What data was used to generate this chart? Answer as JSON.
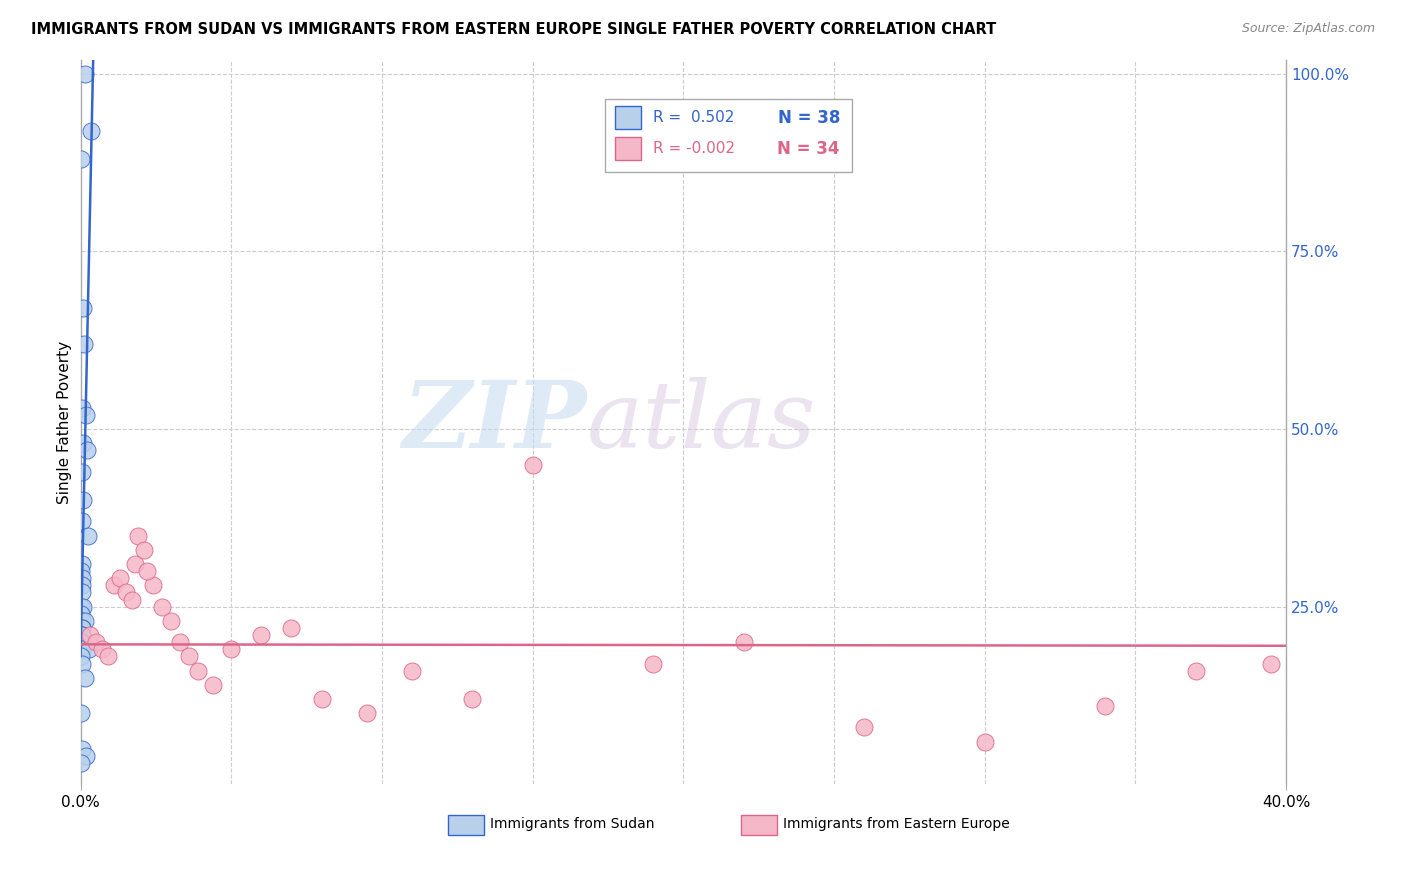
{
  "title": "IMMIGRANTS FROM SUDAN VS IMMIGRANTS FROM EASTERN EUROPE SINGLE FATHER POVERTY CORRELATION CHART",
  "source": "Source: ZipAtlas.com",
  "ylabel": "Single Father Poverty",
  "legend_blue_r": "R =  0.502",
  "legend_blue_n": "N = 38",
  "legend_pink_r": "R = -0.002",
  "legend_pink_n": "N = 34",
  "blue_color": "#b8d0ea",
  "pink_color": "#f5b8c8",
  "blue_line_color": "#3366cc",
  "pink_line_color": "#dd6688",
  "watermark_zip": "ZIP",
  "watermark_atlas": "atlas",
  "blue_x": [
    0.0015,
    0.0035,
    0.0003,
    0.0008,
    0.0012,
    0.0005,
    0.0018,
    0.0007,
    0.0022,
    0.0004,
    0.0009,
    0.0006,
    0.0025,
    0.0004,
    0.0003,
    0.0005,
    0.0004,
    0.0006,
    0.0003,
    0.0007,
    0.0002,
    0.0004,
    0.0014,
    0.0005,
    0.0006,
    0.0004,
    0.0005,
    0.0002,
    0.0002,
    0.0004,
    0.0028,
    0.0003,
    0.0004,
    0.0016,
    0.0003,
    0.0004,
    0.0019,
    0.0003
  ],
  "blue_y": [
    1.0,
    0.92,
    0.88,
    0.67,
    0.62,
    0.53,
    0.52,
    0.48,
    0.47,
    0.44,
    0.4,
    0.37,
    0.35,
    0.31,
    0.3,
    0.29,
    0.28,
    0.27,
    0.25,
    0.25,
    0.24,
    0.23,
    0.23,
    0.22,
    0.22,
    0.21,
    0.21,
    0.2,
    0.19,
    0.19,
    0.19,
    0.18,
    0.17,
    0.15,
    0.1,
    0.05,
    0.04,
    0.03
  ],
  "pink_x": [
    0.003,
    0.005,
    0.007,
    0.009,
    0.011,
    0.013,
    0.015,
    0.017,
    0.019,
    0.021,
    0.024,
    0.027,
    0.03,
    0.033,
    0.036,
    0.039,
    0.044,
    0.05,
    0.06,
    0.07,
    0.08,
    0.095,
    0.11,
    0.13,
    0.15,
    0.19,
    0.22,
    0.26,
    0.3,
    0.34,
    0.37,
    0.395,
    0.018,
    0.022
  ],
  "pink_y": [
    0.21,
    0.2,
    0.19,
    0.18,
    0.28,
    0.29,
    0.27,
    0.26,
    0.35,
    0.33,
    0.28,
    0.25,
    0.23,
    0.2,
    0.18,
    0.16,
    0.14,
    0.19,
    0.21,
    0.22,
    0.12,
    0.1,
    0.16,
    0.12,
    0.45,
    0.17,
    0.2,
    0.08,
    0.06,
    0.11,
    0.16,
    0.17,
    0.31,
    0.3
  ],
  "blue_line_x": [
    0.0,
    0.004
  ],
  "blue_line_y_start": 0.18,
  "blue_line_slope": 200.0,
  "pink_line_x": [
    0.0,
    0.4
  ],
  "pink_line_y": [
    0.197,
    0.195
  ],
  "xlim": [
    0.0,
    0.4
  ],
  "ylim": [
    0.0,
    1.02
  ],
  "xgrid": [
    0.05,
    0.1,
    0.15,
    0.2,
    0.25,
    0.3,
    0.35,
    0.4
  ],
  "ygrid": [
    0.25,
    0.5,
    0.75,
    1.0
  ],
  "ytick_labels": [
    "25.0%",
    "50.0%",
    "75.0%",
    "100.0%"
  ],
  "ytick_vals": [
    0.25,
    0.5,
    0.75,
    1.0
  ]
}
